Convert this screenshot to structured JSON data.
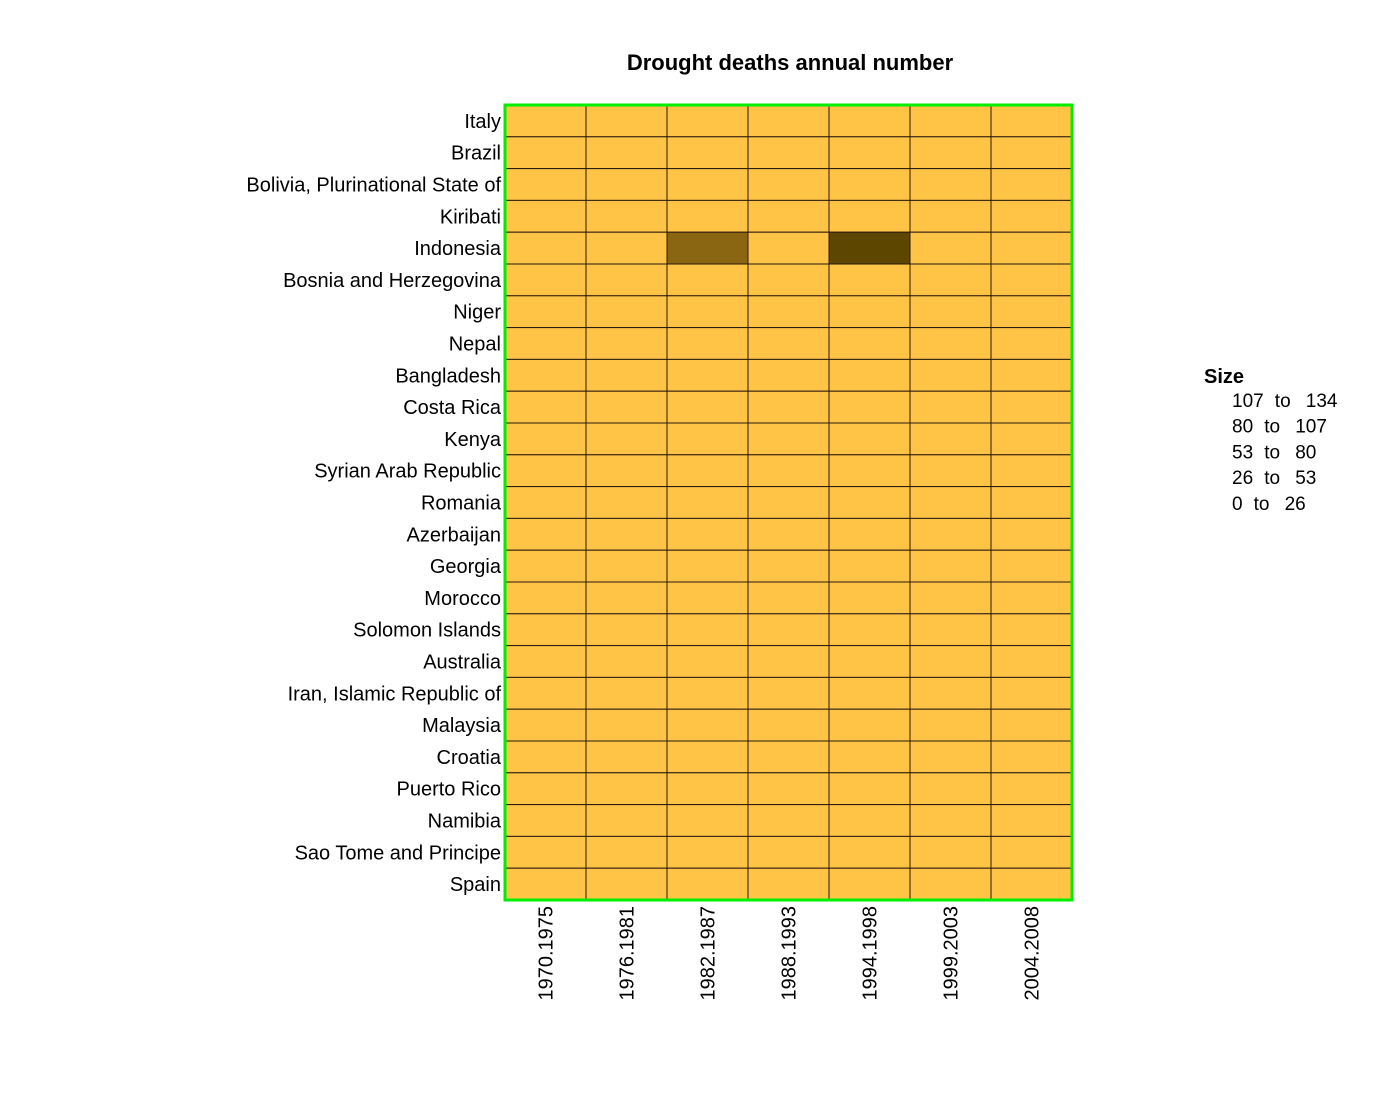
{
  "chart_data": {
    "type": "heatmap",
    "title": "Drought deaths annual number",
    "rows": [
      "Italy",
      "Brazil",
      "Bolivia, Plurinational State of",
      "Kiribati",
      "Indonesia",
      "Bosnia and Herzegovina",
      "Niger",
      "Nepal",
      "Bangladesh",
      "Costa Rica",
      "Kenya",
      "Syrian Arab Republic",
      "Romania",
      "Azerbaijan",
      "Georgia",
      "Morocco",
      "Solomon Islands",
      "Australia",
      "Iran, Islamic Republic of",
      "Malaysia",
      "Croatia",
      "Puerto Rico",
      "Namibia",
      "Sao Tome and Principe",
      "Spain"
    ],
    "columns": [
      "1970.1975",
      "1976.1981",
      "1982.1987",
      "1988.1993",
      "1994.1998",
      "1999.2003",
      "2004.2008"
    ],
    "values": [
      [
        0,
        0,
        0,
        0,
        0,
        0,
        0
      ],
      [
        0,
        0,
        0,
        0,
        0,
        0,
        0
      ],
      [
        0,
        0,
        0,
        0,
        0,
        0,
        0
      ],
      [
        0,
        0,
        0,
        0,
        0,
        0,
        0
      ],
      [
        0,
        0,
        75,
        0,
        130,
        0,
        0
      ],
      [
        0,
        0,
        0,
        0,
        0,
        0,
        0
      ],
      [
        0,
        0,
        0,
        0,
        0,
        0,
        0
      ],
      [
        0,
        0,
        0,
        0,
        0,
        0,
        0
      ],
      [
        0,
        0,
        0,
        0,
        0,
        0,
        0
      ],
      [
        0,
        0,
        0,
        0,
        0,
        0,
        0
      ],
      [
        0,
        0,
        0,
        0,
        0,
        0,
        0
      ],
      [
        0,
        0,
        0,
        0,
        0,
        0,
        0
      ],
      [
        0,
        0,
        0,
        0,
        0,
        0,
        0
      ],
      [
        0,
        0,
        0,
        0,
        0,
        0,
        0
      ],
      [
        0,
        0,
        0,
        0,
        0,
        0,
        0
      ],
      [
        0,
        0,
        0,
        0,
        0,
        0,
        0
      ],
      [
        0,
        0,
        0,
        0,
        0,
        0,
        0
      ],
      [
        0,
        0,
        0,
        0,
        0,
        0,
        0
      ],
      [
        0,
        0,
        0,
        0,
        0,
        0,
        0
      ],
      [
        0,
        0,
        0,
        0,
        0,
        0,
        0
      ],
      [
        0,
        0,
        0,
        0,
        0,
        0,
        0
      ],
      [
        0,
        0,
        0,
        0,
        0,
        0,
        0
      ],
      [
        0,
        0,
        0,
        0,
        0,
        0,
        0
      ],
      [
        0,
        0,
        0,
        0,
        0,
        0,
        0
      ],
      [
        0,
        0,
        0,
        0,
        0,
        0,
        0
      ]
    ],
    "legend": {
      "title": "Size",
      "placement": "right",
      "bins": [
        {
          "from": "107",
          "to": "134",
          "color": "#5c4600"
        },
        {
          "from": "80",
          "to": "107",
          "color": "#6f5507"
        },
        {
          "from": "53",
          "to": "80",
          "color": "#8a6612"
        },
        {
          "from": "26",
          "to": "53",
          "color": "#c9952c"
        },
        {
          "from": "0",
          "to": "26",
          "color": "#ffc445"
        }
      ],
      "connector": "to"
    },
    "colors": {
      "frame": "#00ee00",
      "cell_border": "#2a1a10"
    }
  }
}
